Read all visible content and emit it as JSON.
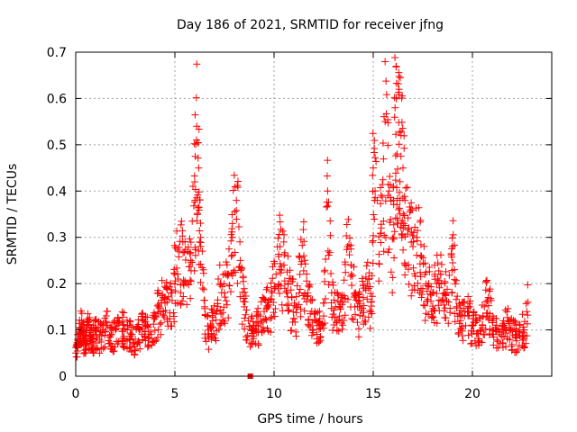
{
  "chart_data": {
    "type": "scatter",
    "title": "Day 186 of 2021, SRMTID for receiver jfng",
    "xlabel": "GPS time / hours",
    "ylabel": "SRMTID / TECUs",
    "xlim": [
      0,
      24
    ],
    "ylim": [
      0,
      0.7
    ],
    "xticks": [
      0,
      5,
      10,
      15,
      20
    ],
    "yticks": [
      0,
      0.1,
      0.2,
      0.3,
      0.4,
      0.5,
      0.6,
      0.7
    ],
    "ytick_labels": [
      "0",
      "0.1",
      "0.2",
      "0.3",
      "0.4",
      "0.5",
      "0.6",
      "0.7"
    ],
    "grid": true,
    "marker": "plus",
    "color": "#ff0000",
    "outlier_marker": {
      "x": 8.8,
      "y": 0.0,
      "shape": "square"
    },
    "series": [
      {
        "name": "SRMTID",
        "x": [
          0.0,
          0.1,
          0.2,
          0.3,
          0.4,
          0.5,
          0.6,
          0.7,
          0.8,
          0.9,
          1.0,
          1.2,
          1.4,
          1.6,
          1.8,
          2.0,
          2.2,
          2.4,
          2.6,
          2.8,
          3.0,
          3.2,
          3.4,
          3.6,
          3.8,
          4.0,
          4.2,
          4.4,
          4.6,
          4.8,
          5.0,
          5.2,
          5.4,
          5.6,
          5.8,
          6.0,
          6.1,
          6.2,
          6.3,
          6.5,
          6.7,
          6.9,
          7.1,
          7.3,
          7.5,
          7.7,
          7.9,
          8.1,
          8.3,
          8.5,
          8.7,
          8.9,
          9.1,
          9.3,
          9.5,
          9.7,
          9.9,
          10.1,
          10.3,
          10.5,
          10.7,
          10.9,
          11.1,
          11.3,
          11.5,
          11.7,
          11.9,
          12.1,
          12.3,
          12.5,
          12.7,
          12.9,
          13.1,
          13.3,
          13.5,
          13.7,
          13.9,
          14.1,
          14.3,
          14.5,
          14.7,
          14.9,
          15.0,
          15.2,
          15.4,
          15.6,
          15.8,
          16.0,
          16.1,
          16.2,
          16.3,
          16.4,
          16.5,
          16.6,
          16.8,
          17.0,
          17.2,
          17.4,
          17.6,
          17.8,
          18.0,
          18.2,
          18.4,
          18.6,
          18.8,
          19.0,
          19.2,
          19.4,
          19.6,
          19.8,
          20.0,
          20.2,
          20.4,
          20.6,
          20.8,
          21.0,
          21.2,
          21.4,
          21.6,
          21.8,
          22.0,
          22.2,
          22.4,
          22.6,
          22.8
        ],
        "y": [
          0.05,
          0.08,
          0.1,
          0.12,
          0.09,
          0.07,
          0.11,
          0.1,
          0.08,
          0.09,
          0.1,
          0.09,
          0.1,
          0.11,
          0.09,
          0.1,
          0.12,
          0.11,
          0.1,
          0.09,
          0.08,
          0.1,
          0.12,
          0.11,
          0.09,
          0.13,
          0.15,
          0.17,
          0.16,
          0.18,
          0.22,
          0.27,
          0.29,
          0.2,
          0.25,
          0.42,
          0.54,
          0.45,
          0.3,
          0.15,
          0.1,
          0.12,
          0.14,
          0.2,
          0.18,
          0.22,
          0.3,
          0.38,
          0.25,
          0.15,
          0.12,
          0.1,
          0.11,
          0.13,
          0.14,
          0.15,
          0.18,
          0.22,
          0.28,
          0.24,
          0.2,
          0.17,
          0.15,
          0.22,
          0.26,
          0.18,
          0.14,
          0.12,
          0.11,
          0.13,
          0.4,
          0.18,
          0.15,
          0.13,
          0.16,
          0.28,
          0.22,
          0.18,
          0.15,
          0.17,
          0.2,
          0.16,
          0.45,
          0.38,
          0.32,
          0.55,
          0.4,
          0.3,
          0.58,
          0.48,
          0.62,
          0.52,
          0.45,
          0.38,
          0.32,
          0.28,
          0.3,
          0.26,
          0.22,
          0.2,
          0.18,
          0.2,
          0.22,
          0.18,
          0.16,
          0.28,
          0.15,
          0.12,
          0.13,
          0.14,
          0.11,
          0.12,
          0.1,
          0.15,
          0.17,
          0.12,
          0.1,
          0.09,
          0.11,
          0.12,
          0.1,
          0.09,
          0.11,
          0.1,
          0.16
        ]
      }
    ]
  }
}
